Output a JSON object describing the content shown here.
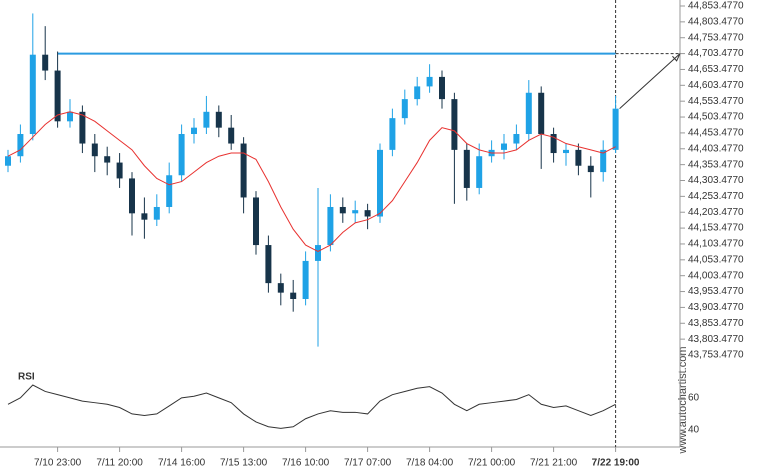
{
  "chart_data": [
    {
      "type": "candlestick",
      "categories": [
        null,
        null,
        null,
        null,
        "7/10 23:00",
        null,
        null,
        null,
        null,
        "7/11 20:00",
        null,
        null,
        null,
        null,
        "7/14 16:00",
        null,
        null,
        null,
        null,
        "7/15 13:00",
        null,
        null,
        null,
        null,
        "7/16 10:00",
        null,
        null,
        null,
        null,
        "7/17 07:00",
        null,
        null,
        null,
        null,
        "7/18 04:00",
        null,
        null,
        null,
        null,
        "7/21 00:00",
        null,
        null,
        null,
        null,
        "7/21 21:00",
        null,
        null,
        null,
        null,
        "7/22 19:00"
      ],
      "candles": [
        [
          44350,
          44400,
          44330,
          44380
        ],
        [
          44380,
          44480,
          44360,
          44450
        ],
        [
          44450,
          44830,
          44430,
          44700
        ],
        [
          44700,
          44790,
          44620,
          44650
        ],
        [
          44650,
          44710,
          44470,
          44490
        ],
        [
          44490,
          44560,
          44470,
          44520
        ],
        [
          44520,
          44540,
          44390,
          44420
        ],
        [
          44420,
          44450,
          44330,
          44380
        ],
        [
          44380,
          44410,
          44320,
          44360
        ],
        [
          44360,
          44390,
          44280,
          44310
        ],
        [
          44310,
          44330,
          44130,
          44200
        ],
        [
          44200,
          44250,
          44120,
          44180
        ],
        [
          44180,
          44260,
          44160,
          44220
        ],
        [
          44220,
          44360,
          44200,
          44320
        ],
        [
          44320,
          44480,
          44300,
          44450
        ],
        [
          44450,
          44500,
          44420,
          44470
        ],
        [
          44470,
          44570,
          44450,
          44520
        ],
        [
          44520,
          44540,
          44440,
          44470
        ],
        [
          44470,
          44510,
          44400,
          44420
        ],
        [
          44420,
          44440,
          44200,
          44250
        ],
        [
          44250,
          44270,
          44070,
          44100
        ],
        [
          44100,
          44130,
          43950,
          43980
        ],
        [
          43980,
          44010,
          43910,
          43950
        ],
        [
          43950,
          43990,
          43890,
          43930
        ],
        [
          43930,
          44080,
          43910,
          44050
        ],
        [
          44050,
          44280,
          43780,
          44100
        ],
        [
          44100,
          44260,
          44080,
          44220
        ],
        [
          44220,
          44250,
          44170,
          44200
        ],
        [
          44200,
          44240,
          44170,
          44210
        ],
        [
          44210,
          44230,
          44150,
          44190
        ],
        [
          44190,
          44420,
          44170,
          44400
        ],
        [
          44400,
          44530,
          44380,
          44500
        ],
        [
          44500,
          44590,
          44480,
          44560
        ],
        [
          44560,
          44630,
          44540,
          44600
        ],
        [
          44600,
          44670,
          44580,
          44630
        ],
        [
          44630,
          44650,
          44530,
          44560
        ],
        [
          44560,
          44580,
          44230,
          44400
        ],
        [
          44400,
          44420,
          44240,
          44280
        ],
        [
          44280,
          44420,
          44260,
          44380
        ],
        [
          44380,
          44430,
          44360,
          44400
        ],
        [
          44400,
          44450,
          44370,
          44420
        ],
        [
          44420,
          44480,
          44400,
          44450
        ],
        [
          44450,
          44620,
          44430,
          44580
        ],
        [
          44580,
          44600,
          44340,
          44450
        ],
        [
          44450,
          44470,
          44360,
          44390
        ],
        [
          44390,
          44420,
          44350,
          44400
        ],
        [
          44400,
          44420,
          44320,
          44350
        ],
        [
          44350,
          44380,
          44250,
          44330
        ],
        [
          44330,
          44430,
          44300,
          44400
        ],
        [
          44400,
          44570,
          44390,
          44530
        ]
      ],
      "up_color": "#1fa2e6",
      "down_color": "#17344a",
      "ma": [
        44380,
        44400,
        44440,
        44480,
        44510,
        44520,
        44510,
        44490,
        44460,
        44430,
        44400,
        44350,
        44310,
        44290,
        44300,
        44330,
        44360,
        44380,
        44390,
        44390,
        44370,
        44300,
        44220,
        44150,
        44100,
        44080,
        44100,
        44140,
        44170,
        44180,
        44200,
        44240,
        44300,
        44360,
        44430,
        44470,
        44460,
        44420,
        44400,
        44390,
        44390,
        44400,
        44430,
        44450,
        44440,
        44420,
        44410,
        44400,
        44390,
        44410
      ],
      "ma_color": "#e8312f",
      "level": 44703.477,
      "level_color": "#2b9be0",
      "ylim": [
        43753.477,
        44853.477
      ],
      "yticks": [
        {
          "value": 44853.477,
          "label": "44,853.4770"
        },
        {
          "value": 44803.477,
          "label": "44,803.4770"
        },
        {
          "value": 44753.477,
          "label": "44,753.4770"
        },
        {
          "value": 44703.477,
          "label": "44,703.4770"
        },
        {
          "value": 44653.477,
          "label": "44,653.4770"
        },
        {
          "value": 44603.477,
          "label": "44,603.4770"
        },
        {
          "value": 44553.477,
          "label": "44,553.4770"
        },
        {
          "value": 44503.477,
          "label": "44,503.4770"
        },
        {
          "value": 44453.477,
          "label": "44,453.4770"
        },
        {
          "value": 44403.477,
          "label": "44,403.4770"
        },
        {
          "value": 44353.477,
          "label": "44,353.4770"
        },
        {
          "value": 44303.477,
          "label": "44,303.4770"
        },
        {
          "value": 44253.477,
          "label": "44,253.4770"
        },
        {
          "value": 44203.477,
          "label": "44,203.4770"
        },
        {
          "value": 44153.477,
          "label": "44,153.4770"
        },
        {
          "value": 44103.477,
          "label": "44,103.4770"
        },
        {
          "value": 44053.477,
          "label": "44,053.4770"
        },
        {
          "value": 44003.477,
          "label": "44,003.4770"
        },
        {
          "value": 43953.477,
          "label": "43,953.4770"
        },
        {
          "value": 43903.477,
          "label": "43,903.4770"
        },
        {
          "value": 43853.477,
          "label": "43,853.4770"
        },
        {
          "value": 43803.477,
          "label": "43,803.4770"
        },
        {
          "value": 43753.477,
          "label": "43,753.4770"
        }
      ],
      "watermark": "www.autochartist.com"
    },
    {
      "type": "line",
      "title": "RSI",
      "values": [
        56,
        60,
        68,
        64,
        62,
        60,
        58,
        57,
        56,
        54,
        50,
        49,
        50,
        55,
        60,
        61,
        63,
        60,
        57,
        50,
        45,
        42,
        41,
        42,
        47,
        50,
        52,
        51,
        51,
        50,
        58,
        62,
        64,
        66,
        67,
        63,
        56,
        52,
        56,
        57,
        58,
        59,
        62,
        56,
        54,
        55,
        52,
        49,
        52,
        56
      ],
      "color": "#333333",
      "ylim": [
        30,
        78
      ],
      "yticks": [
        40,
        60
      ]
    }
  ]
}
